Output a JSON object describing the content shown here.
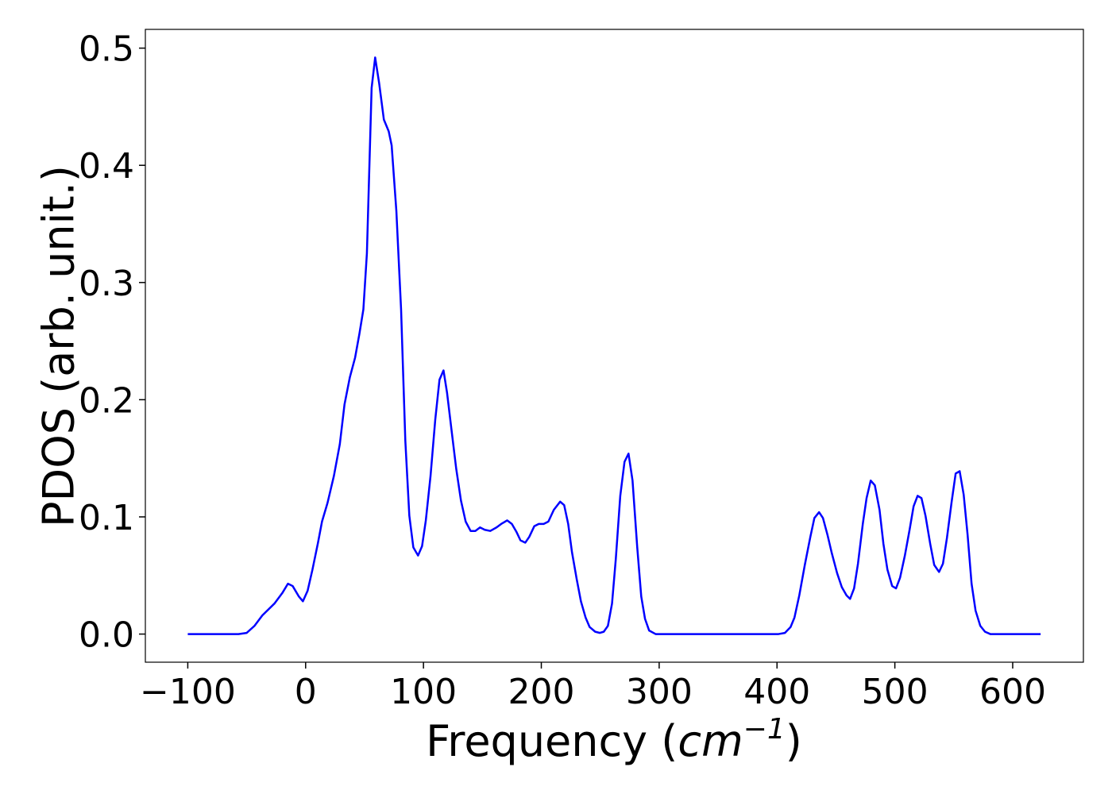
{
  "chart_data": {
    "type": "line",
    "ylabel": "PDOS (arb. unit.)",
    "xlabel": [
      "Frequency (",
      "cm",
      "−1",
      ")"
    ],
    "x": [
      -100,
      -57,
      -50,
      -43.4,
      -36.7,
      -26.5,
      -19.8,
      -15,
      -11,
      -5.7,
      -2.3,
      1.7,
      5.8,
      10.5,
      13.9,
      18.6,
      24,
      29,
      33,
      37.5,
      42,
      45.6,
      49,
      52,
      56,
      59,
      62.4,
      66.4,
      70.5,
      73,
      77,
      81,
      84.6,
      88,
      91.4,
      95.4,
      98.8,
      102,
      106,
      110,
      113.6,
      117,
      120,
      123.7,
      127.8,
      131.8,
      135.8,
      140,
      144,
      148,
      152,
      156.7,
      162,
      166,
      171,
      175,
      179,
      182.3,
      186.4,
      189.8,
      194,
      197.8,
      202,
      206,
      210.6,
      216,
      219.4,
      222.8,
      226,
      230,
      233.6,
      237.6,
      241,
      245.7,
      249.7,
      253,
      256.5,
      260,
      263.2,
      267,
      270.6,
      274,
      277.4,
      281.4,
      284.8,
      288,
      291.5,
      297,
      401.3,
      406.7,
      411.5,
      414.8,
      418.9,
      423.6,
      428.3,
      431.7,
      435.7,
      439,
      443,
      446.5,
      451,
      455,
      459,
      462,
      465.4,
      468.7,
      472.8,
      476,
      479.5,
      483,
      487,
      490.3,
      493.7,
      497.7,
      501,
      504.4,
      508.5,
      512.5,
      515.9,
      519.3,
      522.6,
      526,
      530,
      533.4,
      537.5,
      540.8,
      544.2,
      548.2,
      551.6,
      555,
      558.4,
      561.7,
      565.1,
      568.5,
      572.5,
      576.5,
      581,
      623.7
    ],
    "series": [
      {
        "color": "#0000ff",
        "values": [
          0,
          0,
          0.001,
          0.007,
          0.016,
          0.026,
          0.035,
          0.043,
          0.041,
          0.032,
          0.028,
          0.037,
          0.055,
          0.078,
          0.096,
          0.112,
          0.135,
          0.162,
          0.196,
          0.219,
          0.236,
          0.256,
          0.277,
          0.325,
          0.466,
          0.492,
          0.47,
          0.439,
          0.429,
          0.417,
          0.361,
          0.277,
          0.165,
          0.101,
          0.074,
          0.067,
          0.075,
          0.097,
          0.135,
          0.183,
          0.217,
          0.225,
          0.206,
          0.175,
          0.141,
          0.114,
          0.096,
          0.088,
          0.088,
          0.091,
          0.089,
          0.088,
          0.091,
          0.094,
          0.097,
          0.094,
          0.087,
          0.08,
          0.078,
          0.083,
          0.092,
          0.094,
          0.094,
          0.096,
          0.106,
          0.113,
          0.11,
          0.094,
          0.07,
          0.047,
          0.028,
          0.014,
          0.006,
          0.002,
          0.001,
          0.002,
          0.007,
          0.026,
          0.064,
          0.118,
          0.147,
          0.154,
          0.131,
          0.074,
          0.032,
          0.013,
          0.003,
          0,
          0,
          0.001,
          0.006,
          0.014,
          0.033,
          0.059,
          0.083,
          0.099,
          0.104,
          0.099,
          0.084,
          0.069,
          0.052,
          0.04,
          0.033,
          0.03,
          0.039,
          0.06,
          0.094,
          0.116,
          0.131,
          0.127,
          0.106,
          0.077,
          0.055,
          0.041,
          0.039,
          0.048,
          0.067,
          0.089,
          0.109,
          0.118,
          0.116,
          0.101,
          0.077,
          0.059,
          0.053,
          0.06,
          0.082,
          0.113,
          0.137,
          0.139,
          0.119,
          0.085,
          0.043,
          0.02,
          0.007,
          0.002,
          0,
          0
        ]
      }
    ],
    "xlim": [
      -136,
      660
    ],
    "ylim": [
      -0.024,
      0.516
    ],
    "xticks": [
      {
        "value": -100,
        "label": "−100"
      },
      0,
      100,
      200,
      300,
      400,
      500,
      600
    ],
    "yticks": [
      {
        "value": 0,
        "label": "0.0"
      },
      0.1,
      0.2,
      0.3,
      0.4,
      0.5
    ],
    "grid": false
  }
}
